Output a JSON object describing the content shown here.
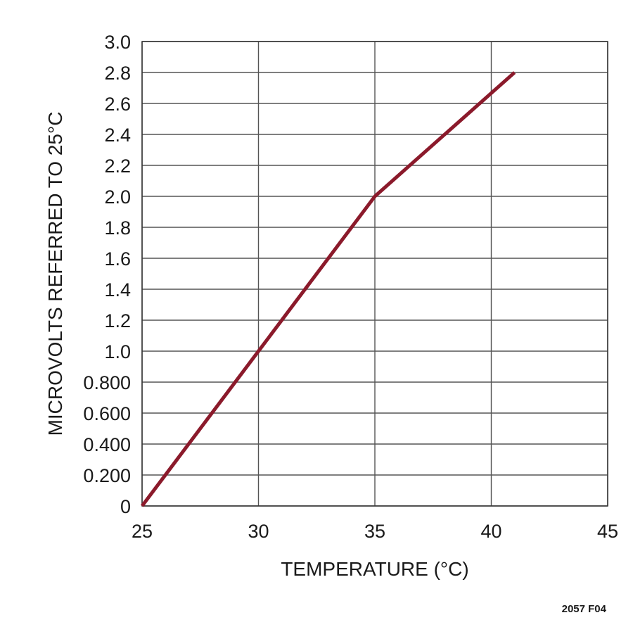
{
  "chart_data": {
    "type": "line",
    "xlabel": "TEMPERATURE (°C)",
    "ylabel": "MICROVOLTS REFERRED TO 25°C",
    "xlim": [
      25,
      45
    ],
    "ylim": [
      0,
      3.0
    ],
    "x_ticks": [
      {
        "value": 25,
        "label": "25"
      },
      {
        "value": 30,
        "label": "30"
      },
      {
        "value": 35,
        "label": "35"
      },
      {
        "value": 40,
        "label": "40"
      },
      {
        "value": 45,
        "label": "45"
      }
    ],
    "y_ticks": [
      {
        "value": 0,
        "label": "0"
      },
      {
        "value": 0.2,
        "label": "0.200"
      },
      {
        "value": 0.4,
        "label": "0.400"
      },
      {
        "value": 0.6,
        "label": "0.600"
      },
      {
        "value": 0.8,
        "label": "0.800"
      },
      {
        "value": 1.0,
        "label": "1.0"
      },
      {
        "value": 1.2,
        "label": "1.2"
      },
      {
        "value": 1.4,
        "label": "1.4"
      },
      {
        "value": 1.6,
        "label": "1.6"
      },
      {
        "value": 1.8,
        "label": "1.8"
      },
      {
        "value": 2.0,
        "label": "2.0"
      },
      {
        "value": 2.2,
        "label": "2.2"
      },
      {
        "value": 2.4,
        "label": "2.4"
      },
      {
        "value": 2.6,
        "label": "2.6"
      },
      {
        "value": 2.8,
        "label": "2.8"
      },
      {
        "value": 3.0,
        "label": "3.0"
      }
    ],
    "grid": true,
    "series": [
      {
        "color": "#8b1a2b",
        "points": [
          {
            "x": 25,
            "y": 0
          },
          {
            "x": 30,
            "y": 1.0
          },
          {
            "x": 35,
            "y": 2.0
          },
          {
            "x": 41,
            "y": 2.8
          }
        ]
      }
    ],
    "figure_id": "2057 F04"
  }
}
